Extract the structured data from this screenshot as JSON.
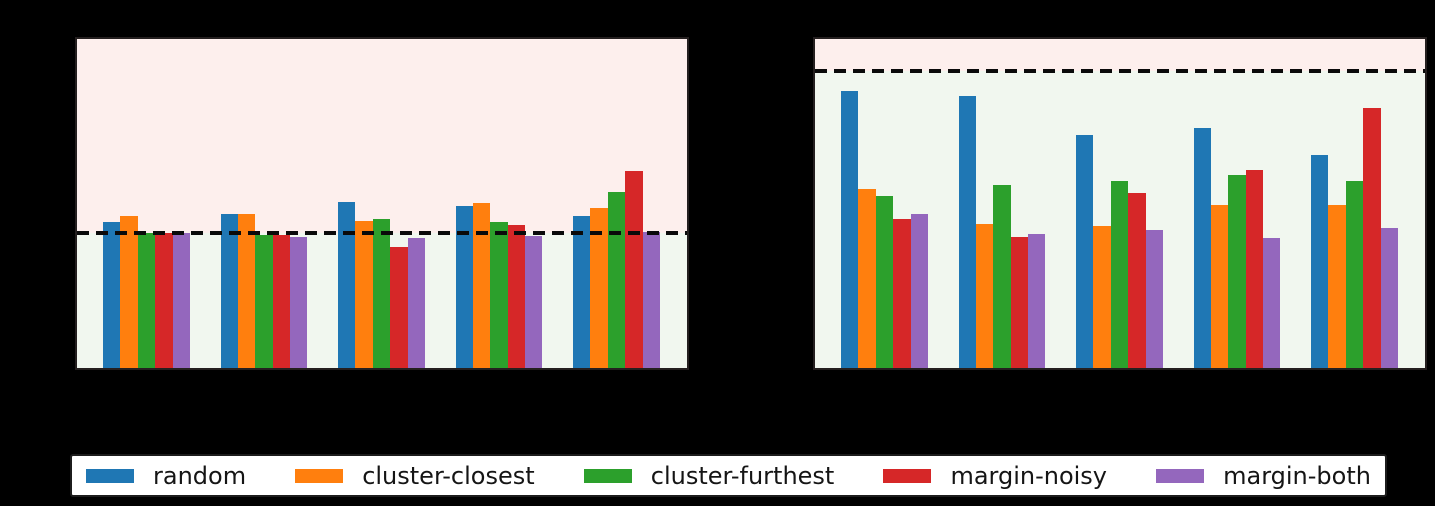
{
  "figure": {
    "background": "#000000",
    "panel_fill_below_line": "#f1f7ef",
    "panel_fill_above_line": "#fdefed",
    "panel_border_color": "#241f1f",
    "dashed_line_color": "#0a0a0a"
  },
  "legend": {
    "position": "bottom",
    "items": [
      {
        "label": "random",
        "color": "#1f77b4"
      },
      {
        "label": "cluster-closest",
        "color": "#ff7f0e"
      },
      {
        "label": "cluster-furthest",
        "color": "#2ca02c"
      },
      {
        "label": "margin-noisy",
        "color": "#d62728"
      },
      {
        "label": "margin-both",
        "color": "#9467bd"
      }
    ]
  },
  "chart_data": [
    {
      "type": "bar",
      "panel": "left",
      "categories": [
        "",
        "",
        "",
        "",
        ""
      ],
      "series": [
        {
          "name": "random",
          "color": "#1f77b4",
          "values": [
            0.443,
            0.467,
            0.506,
            0.491,
            0.461
          ]
        },
        {
          "name": "cluster-closest",
          "color": "#ff7f0e",
          "values": [
            0.461,
            0.467,
            0.446,
            0.503,
            0.485
          ]
        },
        {
          "name": "cluster-furthest",
          "color": "#2ca02c",
          "values": [
            0.41,
            0.404,
            0.452,
            0.443,
            0.536
          ]
        },
        {
          "name": "margin-noisy",
          "color": "#d62728",
          "values": [
            0.41,
            0.404,
            0.367,
            0.434,
            0.599
          ]
        },
        {
          "name": "margin-both",
          "color": "#9467bd",
          "values": [
            0.41,
            0.398,
            0.395,
            0.401,
            0.413
          ]
        }
      ],
      "ylim": [
        0,
        1
      ],
      "dashed_line_y": 0.41,
      "regions": [
        {
          "band": "above-line",
          "color": "#fdefed"
        },
        {
          "band": "below-line",
          "color": "#f1f7ef"
        }
      ],
      "grid": false
    },
    {
      "type": "bar",
      "panel": "right",
      "categories": [
        "",
        "",
        "",
        "",
        ""
      ],
      "series": [
        {
          "name": "random",
          "color": "#1f77b4",
          "values": [
            0.843,
            0.828,
            0.708,
            0.729,
            0.648
          ]
        },
        {
          "name": "cluster-closest",
          "color": "#ff7f0e",
          "values": [
            0.545,
            0.437,
            0.431,
            0.494,
            0.497
          ]
        },
        {
          "name": "cluster-furthest",
          "color": "#2ca02c",
          "values": [
            0.524,
            0.557,
            0.569,
            0.587,
            0.569
          ]
        },
        {
          "name": "margin-noisy",
          "color": "#d62728",
          "values": [
            0.452,
            0.398,
            0.533,
            0.602,
            0.789
          ]
        },
        {
          "name": "margin-both",
          "color": "#9467bd",
          "values": [
            0.467,
            0.407,
            0.419,
            0.395,
            0.425
          ]
        }
      ],
      "ylim": [
        0,
        1
      ],
      "dashed_line_y": 0.904,
      "regions": [
        {
          "band": "above-line",
          "color": "#fdefed"
        },
        {
          "band": "below-line",
          "color": "#f1f7ef"
        }
      ],
      "grid": false
    }
  ]
}
